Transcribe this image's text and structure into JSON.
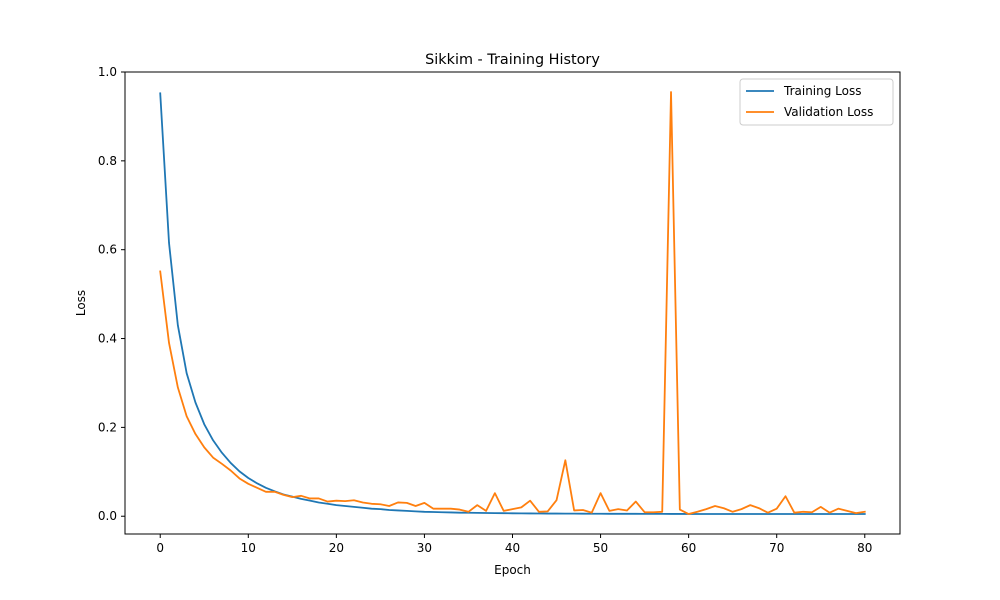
{
  "chart_data": {
    "type": "line",
    "title": "Sikkim - Training History",
    "xlabel": "Epoch",
    "ylabel": "Loss",
    "xlim": [
      -4,
      84
    ],
    "ylim": [
      -0.04,
      1.0
    ],
    "xticks": [
      0,
      10,
      20,
      30,
      40,
      50,
      60,
      70,
      80
    ],
    "yticks": [
      0.0,
      0.2,
      0.4,
      0.6,
      0.8,
      1.0
    ],
    "ytick_labels": [
      "0.0",
      "0.2",
      "0.4",
      "0.6",
      "0.8",
      "1.0"
    ],
    "grid": false,
    "legend_position": "top-right",
    "series": [
      {
        "name": "Training Loss",
        "color": "#1f77b4",
        "x": [
          0,
          1,
          2,
          3,
          4,
          5,
          6,
          7,
          8,
          9,
          10,
          11,
          12,
          13,
          14,
          15,
          16,
          17,
          18,
          19,
          20,
          21,
          22,
          23,
          24,
          25,
          26,
          27,
          28,
          29,
          30,
          31,
          32,
          33,
          34,
          35,
          36,
          37,
          38,
          39,
          40,
          41,
          42,
          43,
          44,
          45,
          46,
          47,
          48,
          49,
          50,
          51,
          52,
          53,
          54,
          55,
          56,
          57,
          58,
          59,
          60,
          61,
          62,
          63,
          64,
          65,
          66,
          67,
          68,
          69,
          70,
          71,
          72,
          73,
          74,
          75,
          76,
          77,
          78,
          79,
          80
        ],
        "values": [
          0.952,
          0.615,
          0.43,
          0.322,
          0.256,
          0.207,
          0.171,
          0.143,
          0.12,
          0.101,
          0.086,
          0.074,
          0.064,
          0.056,
          0.049,
          0.044,
          0.039,
          0.035,
          0.031,
          0.028,
          0.025,
          0.023,
          0.021,
          0.019,
          0.017,
          0.016,
          0.014,
          0.013,
          0.012,
          0.011,
          0.01,
          0.0095,
          0.009,
          0.0085,
          0.008,
          0.0078,
          0.0075,
          0.0072,
          0.007,
          0.0068,
          0.0066,
          0.0065,
          0.0063,
          0.0062,
          0.006,
          0.006,
          0.0058,
          0.0058,
          0.0057,
          0.0056,
          0.0056,
          0.0055,
          0.0055,
          0.0054,
          0.0054,
          0.0053,
          0.0053,
          0.0053,
          0.0052,
          0.0052,
          0.0052,
          0.0051,
          0.0051,
          0.0051,
          0.0051,
          0.005,
          0.005,
          0.005,
          0.005,
          0.005,
          0.005,
          0.005,
          0.005,
          0.005,
          0.005,
          0.005,
          0.005,
          0.005,
          0.005,
          0.005,
          0.005
        ]
      },
      {
        "name": "Validation Loss",
        "color": "#ff7f0e",
        "x": [
          0,
          1,
          2,
          3,
          4,
          5,
          6,
          7,
          8,
          9,
          10,
          11,
          12,
          13,
          14,
          15,
          16,
          17,
          18,
          19,
          20,
          21,
          22,
          23,
          24,
          25,
          26,
          27,
          28,
          29,
          30,
          31,
          32,
          33,
          34,
          35,
          36,
          37,
          38,
          39,
          40,
          41,
          42,
          43,
          44,
          45,
          46,
          47,
          48,
          49,
          50,
          51,
          52,
          53,
          54,
          55,
          56,
          57,
          58,
          59,
          60,
          61,
          62,
          63,
          64,
          65,
          66,
          67,
          68,
          69,
          70,
          71,
          72,
          73,
          74,
          75,
          76,
          77,
          78,
          79,
          80
        ],
        "values": [
          0.551,
          0.39,
          0.29,
          0.225,
          0.185,
          0.155,
          0.132,
          0.118,
          0.103,
          0.085,
          0.073,
          0.064,
          0.055,
          0.055,
          0.048,
          0.043,
          0.046,
          0.04,
          0.04,
          0.033,
          0.035,
          0.034,
          0.036,
          0.031,
          0.028,
          0.027,
          0.023,
          0.031,
          0.03,
          0.023,
          0.03,
          0.017,
          0.017,
          0.017,
          0.015,
          0.01,
          0.025,
          0.012,
          0.052,
          0.012,
          0.016,
          0.02,
          0.035,
          0.01,
          0.011,
          0.036,
          0.126,
          0.013,
          0.014,
          0.008,
          0.052,
          0.012,
          0.016,
          0.013,
          0.033,
          0.009,
          0.009,
          0.01,
          0.955,
          0.015,
          0.005,
          0.01,
          0.016,
          0.023,
          0.018,
          0.01,
          0.016,
          0.025,
          0.018,
          0.008,
          0.017,
          0.045,
          0.008,
          0.01,
          0.009,
          0.021,
          0.008,
          0.017,
          0.012,
          0.007,
          0.01
        ]
      }
    ]
  }
}
